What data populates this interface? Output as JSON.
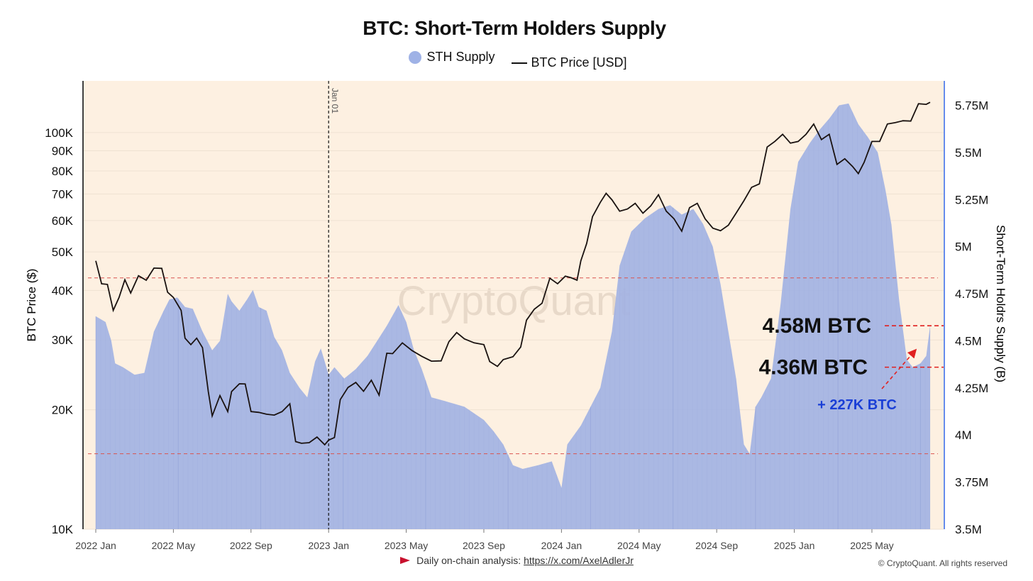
{
  "chart_data": {
    "type": "area+line",
    "title": "BTC: Short-Term Holders Supply",
    "legend": [
      {
        "name": "STH Supply",
        "color": "#9fb2e6"
      },
      {
        "name": "BTC Price [USD]",
        "color": "#111111"
      }
    ],
    "ylabel_left": "BTC Price ($)",
    "ylabel_right": "Short-Term Holdrs Supply (B)",
    "left_axis": {
      "scale": "log",
      "range": [
        10000,
        135000
      ],
      "ticks": [
        {
          "v": 10000,
          "label": "10K"
        },
        {
          "v": 20000,
          "label": "20K"
        },
        {
          "v": 30000,
          "label": "30K"
        },
        {
          "v": 40000,
          "label": "40K"
        },
        {
          "v": 50000,
          "label": "50K"
        },
        {
          "v": 60000,
          "label": "60K"
        },
        {
          "v": 70000,
          "label": "70K"
        },
        {
          "v": 80000,
          "label": "80K"
        },
        {
          "v": 90000,
          "label": "90K"
        },
        {
          "v": 100000,
          "label": "100K"
        }
      ]
    },
    "right_axis": {
      "scale": "linear",
      "range": [
        3.5,
        5.88
      ],
      "ticks": [
        {
          "v": 3.5,
          "label": "3.5M"
        },
        {
          "v": 3.75,
          "label": "3.75M"
        },
        {
          "v": 4.0,
          "label": "4M"
        },
        {
          "v": 4.25,
          "label": "4.25M"
        },
        {
          "v": 4.5,
          "label": "4.5M"
        },
        {
          "v": 4.75,
          "label": "4.75M"
        },
        {
          "v": 5.0,
          "label": "5M"
        },
        {
          "v": 5.25,
          "label": "5.25M"
        },
        {
          "v": 5.5,
          "label": "5.5M"
        },
        {
          "v": 5.75,
          "label": "5.75M"
        }
      ]
    },
    "x_axis": {
      "unit": "months since 2022 Jan",
      "range": [
        -0.5,
        43.5
      ],
      "ticks": [
        {
          "v": 0,
          "label": "2022 Jan"
        },
        {
          "v": 4,
          "label": "2022 May"
        },
        {
          "v": 8,
          "label": "2022 Sep"
        },
        {
          "v": 12,
          "label": "2023 Jan"
        },
        {
          "v": 16,
          "label": "2023 May"
        },
        {
          "v": 20,
          "label": "2023 Sep"
        },
        {
          "v": 24,
          "label": "2024 Jan"
        },
        {
          "v": 28,
          "label": "2024 May"
        },
        {
          "v": 32,
          "label": "2024 Sep"
        },
        {
          "v": 36,
          "label": "2025 Jan"
        },
        {
          "v": 40,
          "label": "2025 May"
        }
      ]
    },
    "vertical_marker": {
      "x": 12,
      "label": "Jan 01"
    },
    "reference_lines_price": [
      43000,
      15500
    ],
    "sth_supply_m": [
      [
        0,
        4.63
      ],
      [
        0.5,
        4.6
      ],
      [
        0.8,
        4.5
      ],
      [
        1.0,
        4.38
      ],
      [
        1.4,
        4.36
      ],
      [
        2.0,
        4.32
      ],
      [
        2.5,
        4.33
      ],
      [
        3.0,
        4.55
      ],
      [
        3.5,
        4.66
      ],
      [
        3.8,
        4.72
      ],
      [
        4.2,
        4.73
      ],
      [
        4.6,
        4.68
      ],
      [
        5.0,
        4.67
      ],
      [
        5.5,
        4.55
      ],
      [
        6.0,
        4.45
      ],
      [
        6.4,
        4.5
      ],
      [
        6.8,
        4.75
      ],
      [
        7.0,
        4.71
      ],
      [
        7.4,
        4.66
      ],
      [
        7.8,
        4.72
      ],
      [
        8.1,
        4.77
      ],
      [
        8.4,
        4.68
      ],
      [
        8.8,
        4.66
      ],
      [
        9.2,
        4.52
      ],
      [
        9.6,
        4.45
      ],
      [
        10.0,
        4.33
      ],
      [
        10.5,
        4.25
      ],
      [
        10.9,
        4.2
      ],
      [
        11.3,
        4.39
      ],
      [
        11.6,
        4.46
      ],
      [
        12.0,
        4.32
      ],
      [
        12.3,
        4.36
      ],
      [
        12.8,
        4.3
      ],
      [
        13.4,
        4.35
      ],
      [
        14.0,
        4.42
      ],
      [
        14.5,
        4.5
      ],
      [
        15.0,
        4.58
      ],
      [
        15.6,
        4.69
      ],
      [
        16.0,
        4.6
      ],
      [
        16.4,
        4.45
      ],
      [
        16.8,
        4.35
      ],
      [
        17.3,
        4.2
      ],
      [
        18.0,
        4.18
      ],
      [
        19.0,
        4.15
      ],
      [
        20.0,
        4.08
      ],
      [
        20.5,
        4.02
      ],
      [
        21.0,
        3.95
      ],
      [
        21.5,
        3.84
      ],
      [
        22.0,
        3.82
      ],
      [
        22.8,
        3.84
      ],
      [
        23.5,
        3.86
      ],
      [
        24.0,
        3.72
      ],
      [
        24.3,
        3.95
      ],
      [
        25.0,
        4.05
      ],
      [
        26.0,
        4.25
      ],
      [
        26.6,
        4.55
      ],
      [
        27.0,
        4.9
      ],
      [
        27.6,
        5.08
      ],
      [
        28.3,
        5.15
      ],
      [
        29.0,
        5.2
      ],
      [
        29.6,
        5.22
      ],
      [
        30.2,
        5.17
      ],
      [
        30.8,
        5.2
      ],
      [
        31.3,
        5.12
      ],
      [
        31.8,
        5.0
      ],
      [
        32.2,
        4.8
      ],
      [
        32.6,
        4.55
      ],
      [
        33.0,
        4.3
      ],
      [
        33.4,
        3.95
      ],
      [
        33.7,
        3.9
      ],
      [
        34.0,
        4.15
      ],
      [
        34.3,
        4.2
      ],
      [
        34.8,
        4.3
      ],
      [
        35.3,
        4.7
      ],
      [
        35.8,
        5.2
      ],
      [
        36.2,
        5.45
      ],
      [
        36.8,
        5.55
      ],
      [
        37.3,
        5.62
      ],
      [
        37.8,
        5.68
      ],
      [
        38.3,
        5.75
      ],
      [
        38.8,
        5.76
      ],
      [
        39.3,
        5.65
      ],
      [
        39.8,
        5.58
      ],
      [
        40.3,
        5.5
      ],
      [
        40.7,
        5.3
      ],
      [
        41.0,
        5.12
      ],
      [
        41.4,
        4.72
      ],
      [
        41.8,
        4.4
      ],
      [
        42.1,
        4.36
      ],
      [
        42.5,
        4.38
      ],
      [
        42.8,
        4.42
      ],
      [
        43.0,
        4.58
      ]
    ],
    "btc_price_usd": [
      [
        0,
        47000
      ],
      [
        0.3,
        42000
      ],
      [
        0.6,
        41000
      ],
      [
        0.9,
        36000
      ],
      [
        1.2,
        38000
      ],
      [
        1.5,
        43000
      ],
      [
        1.8,
        39000
      ],
      [
        2.2,
        44000
      ],
      [
        2.6,
        42000
      ],
      [
        3.0,
        46000
      ],
      [
        3.4,
        45000
      ],
      [
        3.7,
        40000
      ],
      [
        4.0,
        38000
      ],
      [
        4.4,
        36000
      ],
      [
        4.6,
        30000
      ],
      [
        4.9,
        29500
      ],
      [
        5.2,
        30000
      ],
      [
        5.5,
        29000
      ],
      [
        5.8,
        22000
      ],
      [
        6.0,
        19500
      ],
      [
        6.4,
        21500
      ],
      [
        6.8,
        20000
      ],
      [
        7.0,
        22000
      ],
      [
        7.4,
        23500
      ],
      [
        7.7,
        23000
      ],
      [
        8.0,
        20000
      ],
      [
        8.4,
        19500
      ],
      [
        8.8,
        19700
      ],
      [
        9.2,
        19200
      ],
      [
        9.6,
        20000
      ],
      [
        10.0,
        20500
      ],
      [
        10.3,
        16800
      ],
      [
        10.6,
        16300
      ],
      [
        11.0,
        16700
      ],
      [
        11.4,
        16900
      ],
      [
        11.8,
        16500
      ],
      [
        12.0,
        16600
      ],
      [
        12.3,
        17200
      ],
      [
        12.6,
        21000
      ],
      [
        13.0,
        23000
      ],
      [
        13.4,
        23200
      ],
      [
        13.8,
        22500
      ],
      [
        14.2,
        23500
      ],
      [
        14.6,
        22000
      ],
      [
        15.0,
        27500
      ],
      [
        15.3,
        28000
      ],
      [
        15.8,
        29200
      ],
      [
        16.3,
        28500
      ],
      [
        16.8,
        27000
      ],
      [
        17.3,
        26800
      ],
      [
        17.8,
        26300
      ],
      [
        18.2,
        30000
      ],
      [
        18.6,
        31000
      ],
      [
        19.0,
        30500
      ],
      [
        19.5,
        29200
      ],
      [
        20.0,
        29500
      ],
      [
        20.3,
        26200
      ],
      [
        20.7,
        26000
      ],
      [
        21.0,
        26500
      ],
      [
        21.5,
        27500
      ],
      [
        21.9,
        28500
      ],
      [
        22.2,
        34000
      ],
      [
        22.6,
        35500
      ],
      [
        23.0,
        37500
      ],
      [
        23.4,
        42500
      ],
      [
        23.8,
        42000
      ],
      [
        24.2,
        43000
      ],
      [
        24.5,
        43500
      ],
      [
        24.8,
        42000
      ],
      [
        25.0,
        48000
      ],
      [
        25.3,
        52000
      ],
      [
        25.6,
        62000
      ],
      [
        26.0,
        66000
      ],
      [
        26.3,
        71000
      ],
      [
        26.6,
        67000
      ],
      [
        27.0,
        64000
      ],
      [
        27.4,
        63500
      ],
      [
        27.8,
        67000
      ],
      [
        28.2,
        62000
      ],
      [
        28.6,
        66000
      ],
      [
        29.0,
        69000
      ],
      [
        29.4,
        64000
      ],
      [
        29.8,
        60000
      ],
      [
        30.2,
        57000
      ],
      [
        30.6,
        64000
      ],
      [
        31.0,
        67000
      ],
      [
        31.4,
        60000
      ],
      [
        31.8,
        58000
      ],
      [
        32.2,
        56000
      ],
      [
        32.6,
        59000
      ],
      [
        33.0,
        62000
      ],
      [
        33.4,
        68000
      ],
      [
        33.8,
        72000
      ],
      [
        34.2,
        75000
      ],
      [
        34.6,
        91000
      ],
      [
        35.0,
        96000
      ],
      [
        35.4,
        98000
      ],
      [
        35.8,
        95000
      ],
      [
        36.2,
        94000
      ],
      [
        36.6,
        100000
      ],
      [
        37.0,
        104000
      ],
      [
        37.4,
        97000
      ],
      [
        37.8,
        98000
      ],
      [
        38.2,
        84000
      ],
      [
        38.6,
        85000
      ],
      [
        39.0,
        83000
      ],
      [
        39.3,
        78000
      ],
      [
        39.6,
        85000
      ],
      [
        40.0,
        94000
      ],
      [
        40.4,
        96000
      ],
      [
        40.8,
        104000
      ],
      [
        41.2,
        107000
      ],
      [
        41.6,
        106000
      ],
      [
        42.0,
        108000
      ],
      [
        42.4,
        117000
      ],
      [
        42.8,
        119000
      ],
      [
        43.0,
        118000
      ]
    ],
    "annotations": [
      {
        "text": "4.58M BTC",
        "value_m": 4.58
      },
      {
        "text": "4.36M BTC",
        "value_m": 4.36
      },
      {
        "text": "+ 227K BTC",
        "color": "#1a3fd6"
      }
    ],
    "watermark": "CryptoQuant"
  },
  "footer": {
    "text": "Daily on-chain analysis:",
    "link": "https://x.com/AxelAdlerJr"
  },
  "copyright": "© CryptoQuant. All rights reserved"
}
